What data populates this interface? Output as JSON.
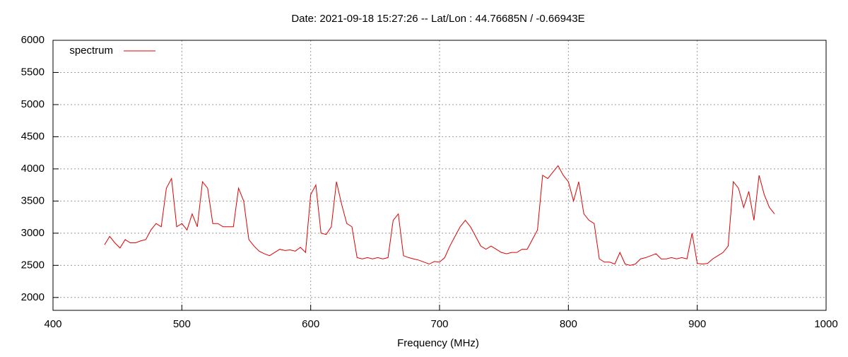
{
  "chart_data": {
    "type": "line",
    "title": "Date: 2021-09-18 15:27:26  --  Lat/Lon : 44.76685N / -0.66943E",
    "x_label": "Frequency (MHz)",
    "x": [
      440,
      444,
      448,
      452,
      456,
      460,
      464,
      468,
      472,
      476,
      480,
      484,
      488,
      492,
      496,
      500,
      504,
      508,
      512,
      516,
      520,
      524,
      528,
      532,
      536,
      540,
      544,
      548,
      552,
      556,
      560,
      564,
      568,
      572,
      576,
      580,
      584,
      588,
      592,
      596,
      600,
      604,
      608,
      612,
      616,
      620,
      624,
      628,
      632,
      636,
      640,
      644,
      648,
      652,
      656,
      660,
      664,
      668,
      672,
      676,
      680,
      684,
      688,
      692,
      696,
      700,
      704,
      708,
      712,
      716,
      720,
      724,
      728,
      732,
      736,
      740,
      744,
      748,
      752,
      756,
      760,
      764,
      768,
      772,
      776,
      780,
      784,
      788,
      792,
      796,
      800,
      804,
      808,
      812,
      816,
      820,
      824,
      828,
      832,
      836,
      840,
      844,
      848,
      852,
      856,
      860,
      864,
      868,
      872,
      876,
      880,
      884,
      888,
      892,
      896,
      900,
      904,
      908,
      912,
      916,
      920,
      924,
      928,
      932,
      936,
      940,
      944,
      948,
      952,
      956,
      960
    ],
    "series": [
      {
        "name": "spectrum",
        "color": "#e00000",
        "values": [
          2820,
          2950,
          2850,
          2770,
          2900,
          2850,
          2850,
          2880,
          2900,
          3050,
          3150,
          3100,
          3700,
          3850,
          3100,
          3150,
          3050,
          3300,
          3100,
          3800,
          3700,
          3150,
          3150,
          3100,
          3100,
          3100,
          3700,
          3500,
          2900,
          2800,
          2720,
          2680,
          2650,
          2700,
          2750,
          2730,
          2740,
          2720,
          2780,
          2700,
          3600,
          3750,
          3000,
          2980,
          3100,
          3800,
          3450,
          3150,
          3100,
          2620,
          2600,
          2620,
          2600,
          2620,
          2600,
          2620,
          3200,
          3300,
          2650,
          2620,
          2600,
          2580,
          2550,
          2520,
          2560,
          2550,
          2620,
          2800,
          2950,
          3100,
          3200,
          3100,
          2950,
          2800,
          2750,
          2800,
          2750,
          2700,
          2680,
          2700,
          2700,
          2750,
          2750,
          2900,
          3050,
          3900,
          3850,
          3950,
          4050,
          3900,
          3800,
          3500,
          3800,
          3300,
          3200,
          3150,
          2600,
          2550,
          2550,
          2520,
          2700,
          2520,
          2500,
          2520,
          2600,
          2620,
          2650,
          2680,
          2600,
          2600,
          2620,
          2600,
          2620,
          2600,
          3000,
          2530,
          2520,
          2530,
          2600,
          2650,
          2700,
          2800,
          3800,
          3700,
          3400,
          3650,
          3200,
          3900,
          3600,
          3400,
          3300
        ]
      }
    ],
    "xlim": [
      400,
      1000
    ],
    "xticks": [
      400,
      500,
      600,
      700,
      800,
      900,
      1000
    ],
    "ylim": [
      1800,
      6000
    ],
    "yticks": [
      2000,
      2500,
      3000,
      3500,
      4000,
      4500,
      5000,
      5500,
      6000
    ],
    "grid": true,
    "legend": "top-left"
  }
}
